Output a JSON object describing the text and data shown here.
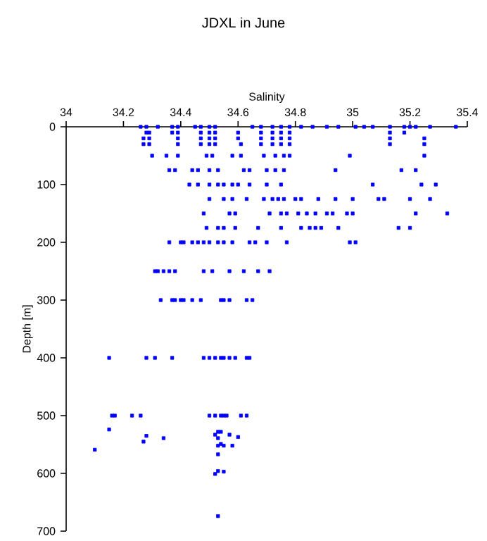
{
  "chart_data": {
    "type": "scatter",
    "title": "JDXL in June",
    "xlabel": "Salinity",
    "ylabel": "Depth [m]",
    "xlim": [
      34,
      35.4
    ],
    "ylim": [
      700,
      0
    ],
    "xticks": [
      34,
      34.2,
      34.4,
      34.6,
      34.8,
      35,
      35.2,
      35.4
    ],
    "yticks": [
      0,
      100,
      200,
      300,
      400,
      500,
      600,
      700
    ],
    "marker": "square",
    "series": [
      {
        "color": "#0000ff",
        "x": [
          34.26,
          34.28,
          34.32,
          34.37,
          34.39,
          34.45,
          34.47,
          34.5,
          34.52,
          34.65,
          34.68,
          34.72,
          34.75,
          34.78,
          34.82,
          34.86,
          34.91,
          34.95,
          35.01,
          35.04,
          35.07,
          35.13,
          35.18,
          35.2,
          35.22,
          35.27,
          35.36,
          34.28,
          34.29,
          34.37,
          34.39,
          34.47,
          34.5,
          34.52,
          34.6,
          34.68,
          34.72,
          34.75,
          34.78,
          35.13,
          35.18,
          34.27,
          34.29,
          34.39,
          34.47,
          34.5,
          34.52,
          34.6,
          34.68,
          34.72,
          34.75,
          34.78,
          35.13,
          35.25,
          34.27,
          34.29,
          34.39,
          34.47,
          34.5,
          34.52,
          34.61,
          34.68,
          34.72,
          34.75,
          34.78,
          35.13,
          35.25,
          34.3,
          34.35,
          34.39,
          34.49,
          34.51,
          34.58,
          34.61,
          34.69,
          34.73,
          34.76,
          34.78,
          34.99,
          35.25,
          34.36,
          34.38,
          34.44,
          34.46,
          34.5,
          34.53,
          34.62,
          34.64,
          34.7,
          34.73,
          34.76,
          34.94,
          35.17,
          35.22,
          34.43,
          34.46,
          34.5,
          34.53,
          34.55,
          34.58,
          34.6,
          34.64,
          34.7,
          34.75,
          35.07,
          35.24,
          35.29,
          34.5,
          34.55,
          34.58,
          34.63,
          34.69,
          34.72,
          34.74,
          34.76,
          34.8,
          34.82,
          34.88,
          34.94,
          35.0,
          35.09,
          35.11,
          35.2,
          35.27,
          34.48,
          34.57,
          34.59,
          34.71,
          34.75,
          34.77,
          34.81,
          34.84,
          34.87,
          34.91,
          34.93,
          34.98,
          35.0,
          35.22,
          35.33,
          34.49,
          34.53,
          34.55,
          34.59,
          34.67,
          34.75,
          34.82,
          34.85,
          34.87,
          34.89,
          34.95,
          35.16,
          35.2,
          34.36,
          34.4,
          34.41,
          34.44,
          34.46,
          34.48,
          34.5,
          34.53,
          34.55,
          34.58,
          34.64,
          34.66,
          34.7,
          34.77,
          34.99,
          35.01,
          34.31,
          34.32,
          34.34,
          34.36,
          34.38,
          34.48,
          34.51,
          34.57,
          34.62,
          34.67,
          34.71,
          34.33,
          34.37,
          34.38,
          34.4,
          34.41,
          34.44,
          34.47,
          34.54,
          34.55,
          34.57,
          34.63,
          34.65,
          34.15,
          34.28,
          34.31,
          34.37,
          34.48,
          34.5,
          34.52,
          34.54,
          34.55,
          34.57,
          34.59,
          34.63,
          34.64,
          34.16,
          34.17,
          34.23,
          34.26,
          34.5,
          34.52,
          34.54,
          34.55,
          34.56,
          34.61,
          34.63,
          34.15,
          34.28,
          34.27,
          34.34,
          34.1,
          34.52,
          34.53,
          34.54,
          34.57,
          34.6,
          34.53,
          34.53,
          34.54,
          34.55,
          34.58,
          34.53,
          34.53,
          34.52,
          34.55,
          34.53
        ],
        "values": [
          0,
          0,
          0,
          0,
          0,
          0,
          0,
          0,
          0,
          0,
          0,
          0,
          0,
          0,
          0,
          0,
          0,
          0,
          0,
          0,
          0,
          0,
          0,
          0,
          0,
          0,
          0,
          10,
          10,
          10,
          10,
          10,
          10,
          10,
          10,
          10,
          10,
          10,
          10,
          10,
          10,
          20,
          20,
          20,
          20,
          20,
          20,
          20,
          20,
          20,
          20,
          20,
          20,
          20,
          30,
          30,
          30,
          30,
          30,
          30,
          30,
          30,
          30,
          30,
          30,
          30,
          30,
          50,
          50,
          50,
          50,
          50,
          50,
          50,
          50,
          50,
          50,
          50,
          50,
          50,
          75,
          75,
          75,
          75,
          75,
          75,
          75,
          75,
          75,
          75,
          75,
          75,
          75,
          75,
          100,
          100,
          100,
          100,
          100,
          100,
          100,
          100,
          100,
          100,
          100,
          100,
          100,
          125,
          125,
          125,
          125,
          125,
          125,
          125,
          125,
          125,
          125,
          125,
          125,
          125,
          125,
          125,
          125,
          125,
          150,
          150,
          150,
          150,
          150,
          150,
          150,
          150,
          150,
          150,
          150,
          150,
          150,
          150,
          150,
          175,
          175,
          175,
          175,
          175,
          175,
          175,
          175,
          175,
          175,
          175,
          175,
          175,
          200,
          200,
          200,
          200,
          200,
          200,
          200,
          200,
          200,
          200,
          200,
          200,
          200,
          200,
          200,
          200,
          250,
          250,
          250,
          250,
          250,
          250,
          250,
          250,
          250,
          250,
          250,
          300,
          300,
          300,
          300,
          300,
          300,
          300,
          300,
          300,
          300,
          300,
          300,
          400,
          400,
          400,
          400,
          400,
          400,
          400,
          400,
          400,
          400,
          400,
          400,
          400,
          500,
          500,
          500,
          500,
          500,
          500,
          500,
          500,
          500,
          500,
          500,
          524,
          535,
          545,
          539,
          559,
          533,
          528,
          528,
          533,
          537,
          539,
          552,
          549,
          552,
          552,
          567,
          596,
          601,
          597,
          674
        ]
      }
    ]
  }
}
